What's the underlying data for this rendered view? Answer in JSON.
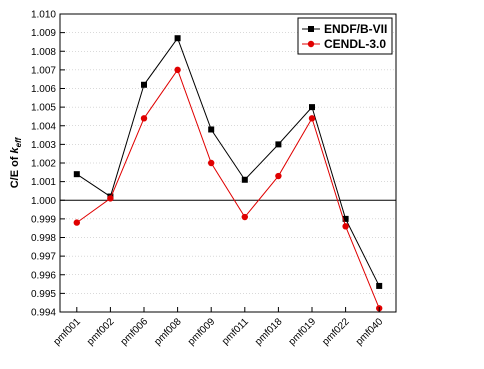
{
  "chart_data": {
    "type": "line",
    "categories": [
      "pmf001",
      "pmf002",
      "pmf006",
      "pmf008",
      "pmf009",
      "pmf011",
      "pmf018",
      "pmf019",
      "pmf022",
      "pmf040"
    ],
    "series": [
      {
        "name": "ENDF/B-VII",
        "color": "#000000",
        "marker": "square",
        "values": [
          1.0014,
          1.0002,
          1.0062,
          1.0087,
          1.0038,
          1.0011,
          1.003,
          1.005,
          0.999,
          0.9954
        ]
      },
      {
        "name": "CENDL-3.0",
        "color": "#e00000",
        "marker": "circle",
        "values": [
          0.9988,
          1.0001,
          1.0044,
          1.007,
          1.002,
          0.9991,
          1.0013,
          1.0044,
          0.9986,
          0.9942
        ]
      }
    ],
    "ylabel_main": "C/E of ",
    "ylabel_k": "k",
    "ylabel_sub": "eff",
    "ylim": [
      0.994,
      1.01
    ],
    "yticks": [
      "0.994",
      "0.995",
      "0.996",
      "0.997",
      "0.998",
      "0.999",
      "1.000",
      "1.001",
      "1.002",
      "1.003",
      "1.004",
      "1.005",
      "1.006",
      "1.007",
      "1.008",
      "1.009",
      "1.010"
    ],
    "reference_line": 1.0,
    "grid": true,
    "legend_position": "top-right"
  }
}
